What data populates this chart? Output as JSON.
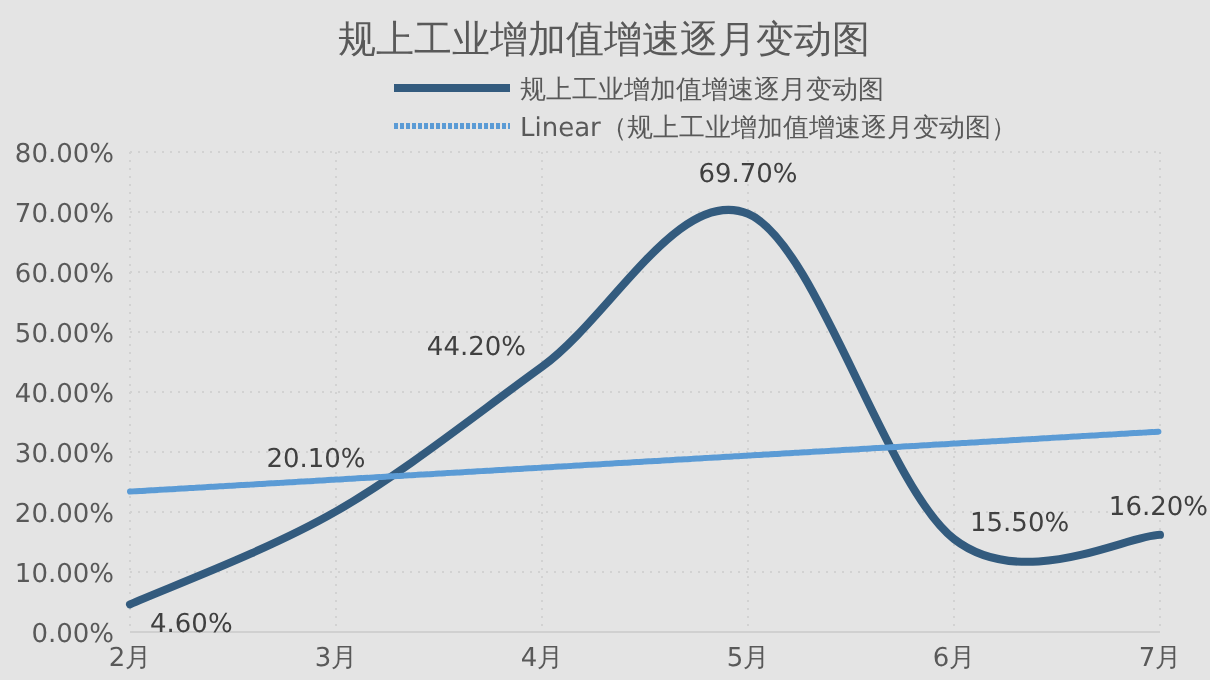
{
  "chart_data": {
    "type": "line",
    "title": "规上工业增加值增速逐月变动图",
    "categories": [
      "2月",
      "3月",
      "4月",
      "5月",
      "6月",
      "7月"
    ],
    "series": [
      {
        "name": "规上工业增加值增速逐月变动图",
        "color": "#335b7e",
        "values": [
          4.6,
          20.1,
          44.2,
          69.7,
          15.5,
          16.2
        ],
        "value_labels": [
          "4.60%",
          "20.10%",
          "44.20%",
          "69.70%",
          "15.50%",
          "16.20%"
        ],
        "line_style": "solid"
      },
      {
        "name": "Linear（规上工业增加值增速逐月变动图）",
        "color": "#5b9bd5",
        "values": [
          23.4,
          25.4,
          27.4,
          29.4,
          31.4,
          33.4
        ],
        "line_style": "dotted"
      }
    ],
    "ylim": [
      0,
      80
    ],
    "yticks": [
      {
        "value": 0,
        "label": "0.00%"
      },
      {
        "value": 10,
        "label": "10.00%"
      },
      {
        "value": 20,
        "label": "20.00%"
      },
      {
        "value": 30,
        "label": "30.00%"
      },
      {
        "value": 40,
        "label": "40.00%"
      },
      {
        "value": 50,
        "label": "50.00%"
      },
      {
        "value": 60,
        "label": "60.00%"
      },
      {
        "value": 70,
        "label": "70.00%"
      },
      {
        "value": 80,
        "label": "80.00%"
      }
    ],
    "grid": true,
    "legend": "top",
    "marker": "none"
  }
}
